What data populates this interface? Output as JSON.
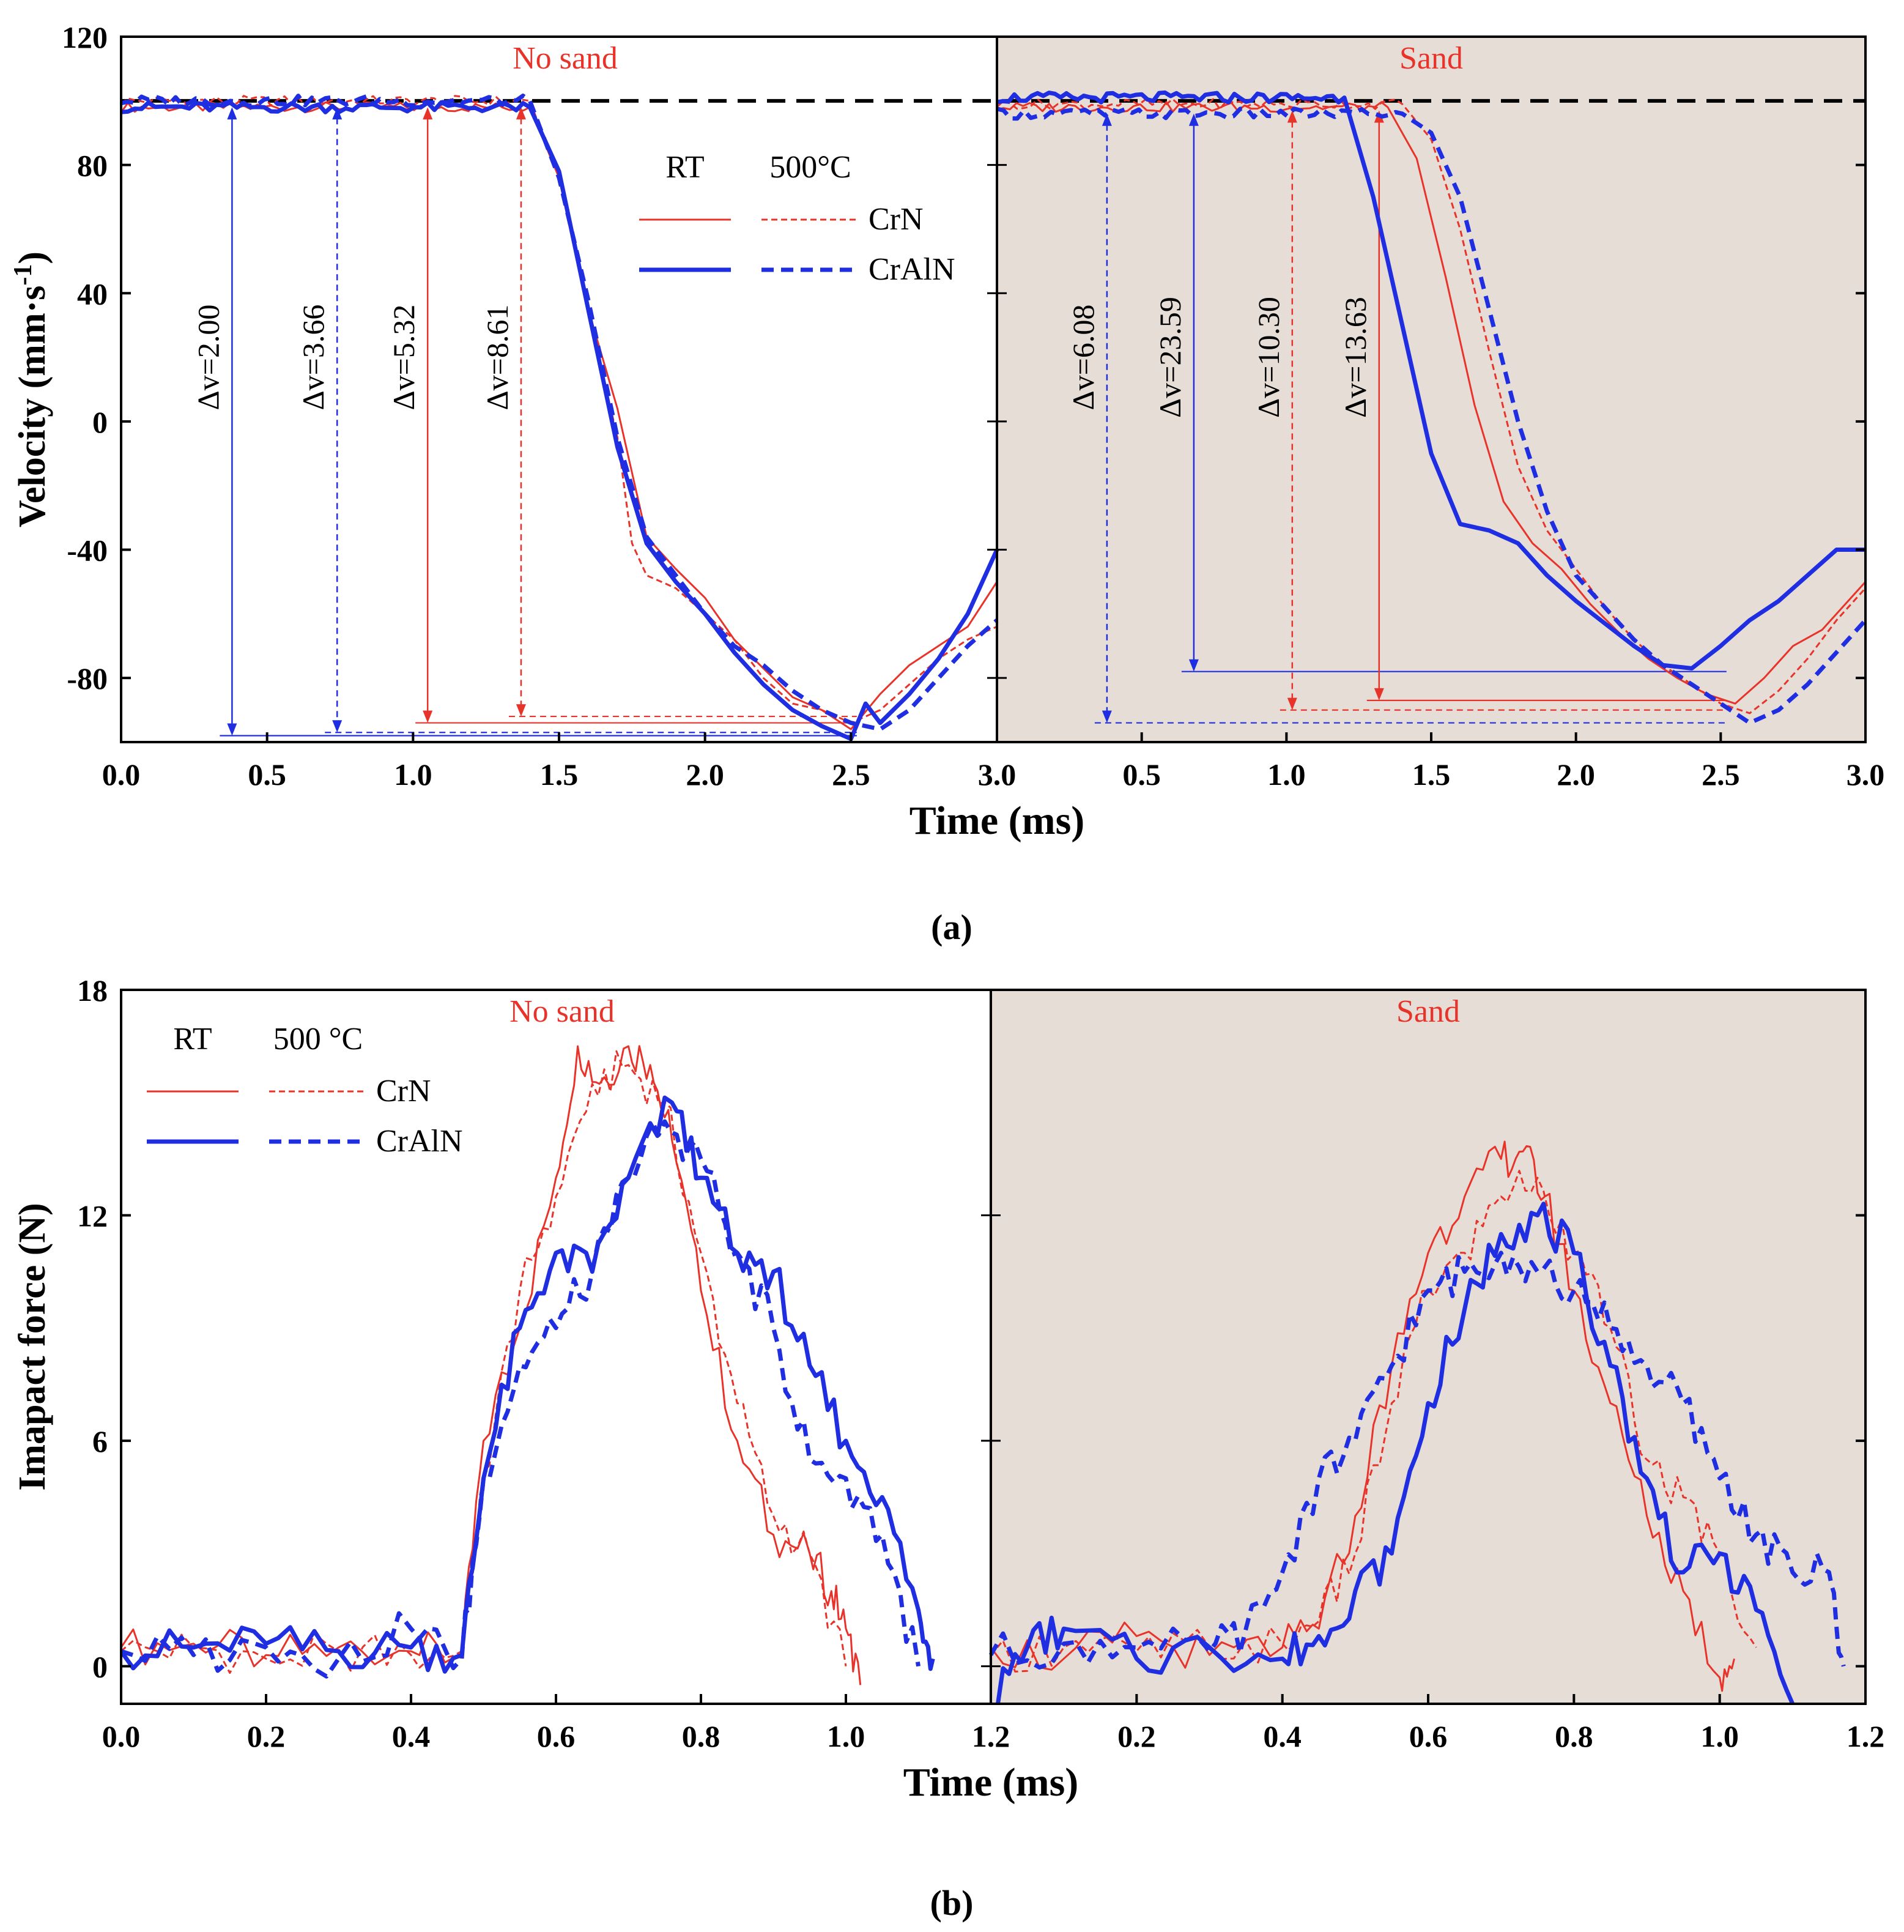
{
  "figure": {
    "panel_labels": [
      "(a)",
      "(b)"
    ]
  },
  "colors": {
    "red": "#e8332a",
    "blue": "#1f2ee0",
    "black": "#000000",
    "sand_bg": "#e6ddd6"
  },
  "chart_data": [
    {
      "type": "line",
      "panel": "(a)",
      "ylabel": "Velocity (mm·s-1)",
      "xlabel": "Time (ms)",
      "ylim": [
        -100,
        120
      ],
      "yticks": [
        "120",
        "80",
        "40",
        "0",
        "-40",
        "-80"
      ],
      "xticks_left": [
        "0.0",
        "0.5",
        "1.0",
        "1.5",
        "2.0",
        "2.5",
        "3.0"
      ],
      "xticks_right": [
        "3.0",
        "0.5",
        "1.0",
        "1.5",
        "2.0",
        "2.5",
        "3.0"
      ],
      "subpanels": [
        {
          "title": "No sand",
          "xlim": [
            0,
            3
          ],
          "shaded": false
        },
        {
          "title": "Sand",
          "xlim": [
            0,
            3
          ],
          "shaded": true
        }
      ],
      "legend": {
        "col1": "RT",
        "col2": "500°C",
        "rows": [
          "CrN",
          "CrAlN"
        ],
        "placement": "top-right of left subpanel"
      },
      "reference_line": 100,
      "series": [
        {
          "name": "CrN",
          "condition": "RT",
          "color": "red",
          "style": "solid",
          "no_sand": {
            "t_drop": 1.4,
            "plateau": 98,
            "x": [
              1.4,
              1.5,
              1.6,
              1.7,
              1.8,
              1.9,
              2.0,
              2.1,
              2.2,
              2.3,
              2.4,
              2.5,
              2.6,
              2.7,
              2.8,
              2.9,
              3.0
            ],
            "y": [
              98,
              76,
              35,
              4,
              -36,
              -46,
              -55,
              -68,
              -77,
              -86,
              -90,
              -96,
              -85,
              -76,
              -70,
              -64,
              -50
            ]
          },
          "sand": {
            "t_drop": 1.35,
            "plateau": 98,
            "x": [
              1.35,
              1.45,
              1.55,
              1.65,
              1.75,
              1.85,
              1.95,
              2.05,
              2.15,
              2.25,
              2.35,
              2.45,
              2.55,
              2.65,
              2.75,
              2.85,
              2.95,
              3.0
            ],
            "y": [
              98,
              82,
              45,
              5,
              -25,
              -38,
              -46,
              -57,
              -66,
              -74,
              -80,
              -85,
              -88,
              -80,
              -70,
              -65,
              -55,
              -50
            ]
          }
        },
        {
          "name": "CrN",
          "condition": "500°C",
          "color": "red",
          "style": "dashed",
          "no_sand": {
            "t_drop": 1.4,
            "plateau": 100,
            "x": [
              1.4,
              1.5,
              1.6,
              1.7,
              1.75,
              1.8,
              1.9,
              2.0,
              2.1,
              2.2,
              2.3,
              2.4,
              2.5,
              2.6,
              2.7,
              2.8,
              2.9,
              3.0
            ],
            "y": [
              100,
              76,
              34,
              -5,
              -38,
              -48,
              -52,
              -60,
              -68,
              -80,
              -88,
              -90,
              -94,
              -90,
              -82,
              -74,
              -68,
              -64
            ]
          },
          "sand": {
            "t_drop": 1.4,
            "plateau": 99,
            "x": [
              1.4,
              1.5,
              1.6,
              1.7,
              1.8,
              1.9,
              2.0,
              2.1,
              2.2,
              2.3,
              2.4,
              2.5,
              2.6,
              2.7,
              2.8,
              2.9,
              3.0
            ],
            "y": [
              99,
              88,
              60,
              22,
              -14,
              -34,
              -46,
              -58,
              -68,
              -76,
              -82,
              -88,
              -91,
              -84,
              -74,
              -62,
              -52
            ]
          }
        },
        {
          "name": "CrAlN",
          "condition": "RT",
          "color": "blue",
          "style": "solid",
          "no_sand": {
            "t_drop": 1.4,
            "plateau": 98,
            "x": [
              1.4,
              1.5,
              1.6,
              1.7,
              1.8,
              1.9,
              2.0,
              2.1,
              2.2,
              2.3,
              2.4,
              2.5,
              2.55,
              2.6,
              2.7,
              2.8,
              2.9,
              3.0
            ],
            "y": [
              98,
              78,
              35,
              -8,
              -38,
              -50,
              -60,
              -72,
              -82,
              -90,
              -95,
              -99,
              -88,
              -94,
              -85,
              -74,
              -60,
              -40
            ]
          },
          "sand": {
            "t_drop": 1.2,
            "plateau": 101,
            "x": [
              1.2,
              1.3,
              1.4,
              1.5,
              1.6,
              1.7,
              1.8,
              1.9,
              2.0,
              2.1,
              2.2,
              2.3,
              2.4,
              2.5,
              2.6,
              2.7,
              2.8,
              2.9,
              3.0
            ],
            "y": [
              101,
              70,
              30,
              -10,
              -32,
              -34,
              -38,
              -48,
              -56,
              -63,
              -70,
              -76,
              -77,
              -70,
              -62,
              -56,
              -48,
              -40,
              -40
            ]
          }
        },
        {
          "name": "CrAlN",
          "condition": "500°C",
          "color": "blue",
          "style": "dashed",
          "no_sand": {
            "t_drop": 1.4,
            "plateau": 100,
            "x": [
              1.4,
              1.5,
              1.6,
              1.7,
              1.8,
              1.9,
              2.0,
              2.1,
              2.2,
              2.3,
              2.4,
              2.5,
              2.6,
              2.7,
              2.8,
              2.9,
              3.0
            ],
            "y": [
              100,
              76,
              38,
              -5,
              -36,
              -48,
              -60,
              -70,
              -76,
              -84,
              -90,
              -94,
              -96,
              -90,
              -80,
              -70,
              -62
            ]
          },
          "sand": {
            "t_drop": 1.4,
            "plateau": 96,
            "x": [
              1.4,
              1.5,
              1.6,
              1.7,
              1.8,
              1.9,
              2.0,
              2.1,
              2.2,
              2.3,
              2.4,
              2.5,
              2.6,
              2.7,
              2.8,
              2.9,
              3.0
            ],
            "y": [
              96,
              90,
              70,
              35,
              0,
              -28,
              -48,
              -58,
              -68,
              -76,
              -82,
              -88,
              -94,
              -90,
              -82,
              -72,
              -62
            ]
          }
        }
      ],
      "annotations_no_sand": [
        {
          "text": "Δv=2.00",
          "x": 0.38,
          "y_top": 98,
          "y_bottom": -98,
          "color": "blue",
          "style": "solid"
        },
        {
          "text": "Δv=3.66",
          "x": 0.74,
          "y_top": 98,
          "y_bottom": -97,
          "color": "blue",
          "style": "dashed"
        },
        {
          "text": "Δv=5.32",
          "x": 1.05,
          "y_top": 98,
          "y_bottom": -94,
          "color": "red",
          "style": "solid"
        },
        {
          "text": "Δv=8.61",
          "x": 1.37,
          "y_top": 98,
          "y_bottom": -92,
          "color": "red",
          "style": "dashed"
        }
      ],
      "annotations_sand": [
        {
          "text": "Δv=6.08",
          "x": 0.38,
          "y_top": 96,
          "y_bottom": -94,
          "color": "blue",
          "style": "dashed"
        },
        {
          "text": "Δv=23.59",
          "x": 0.68,
          "y_top": 96,
          "y_bottom": -78,
          "color": "blue",
          "style": "solid"
        },
        {
          "text": "Δv=10.30",
          "x": 1.02,
          "y_top": 97,
          "y_bottom": -90,
          "color": "red",
          "style": "dashed"
        },
        {
          "text": "Δv=13.63",
          "x": 1.32,
          "y_top": 97,
          "y_bottom": -87,
          "color": "red",
          "style": "solid"
        }
      ]
    },
    {
      "type": "line",
      "panel": "(b)",
      "ylabel": "Imapact force (N)",
      "xlabel": "Time (ms)",
      "ylim": [
        -1,
        18
      ],
      "yticks": [
        "18",
        "12",
        "6",
        "0"
      ],
      "xticks_left": [
        "0.0",
        "0.2",
        "0.4",
        "0.6",
        "0.8",
        "1.0",
        "1.2"
      ],
      "xticks_right": [
        "1.2",
        "0.2",
        "0.4",
        "0.6",
        "0.8",
        "1.0",
        "1.2"
      ],
      "subpanels": [
        {
          "title": "No sand",
          "xlim": [
            0,
            1.2
          ],
          "shaded": false
        },
        {
          "title": "Sand",
          "xlim": [
            0,
            1.2
          ],
          "shaded": true
        }
      ],
      "legend": {
        "col1": "RT",
        "col2": "500 °C",
        "rows": [
          "CrN",
          "CrAlN"
        ],
        "placement": "top-left"
      },
      "series": [
        {
          "name": "CrN",
          "condition": "RT",
          "color": "red",
          "style": "solid",
          "no_sand": {
            "x": [
              0.0,
              0.1,
              0.2,
              0.3,
              0.4,
              0.47,
              0.5,
              0.55,
              0.6,
              0.63,
              0.66,
              0.7,
              0.73,
              0.76,
              0.8,
              0.85,
              0.9,
              0.95,
              0.98,
              1.0,
              1.02
            ],
            "y": [
              0.5,
              0.6,
              0.3,
              0.5,
              0.4,
              0.3,
              6,
              9,
              13,
              16.5,
              15.5,
              16.5,
              16,
              14,
              10,
              6,
              3.5,
              3,
              2,
              1,
              -0.5
            ]
          },
          "sand": {
            "x": [
              0.0,
              0.1,
              0.2,
              0.3,
              0.4,
              0.45,
              0.5,
              0.55,
              0.6,
              0.65,
              0.7,
              0.73,
              0.76,
              0.8,
              0.85,
              0.9,
              0.95,
              1.0,
              1.02
            ],
            "y": [
              0.5,
              0.2,
              0.8,
              0.3,
              0.5,
              1,
              4,
              8,
              11,
              12.5,
              13.5,
              13.7,
              12.5,
              10,
              7,
              4,
              2,
              -0.3,
              0.2
            ]
          }
        },
        {
          "name": "CrN",
          "condition": "500 °C",
          "color": "red",
          "style": "dashed",
          "no_sand": {
            "x": [
              0.0,
              0.1,
              0.2,
              0.3,
              0.4,
              0.47,
              0.5,
              0.55,
              0.6,
              0.65,
              0.7,
              0.75,
              0.8,
              0.85,
              0.9,
              0.95,
              1.0
            ],
            "y": [
              0.4,
              0.5,
              0.2,
              0.4,
              0.3,
              0.4,
              5,
              10,
              12.5,
              15.5,
              16,
              15,
              11,
              7,
              4,
              3,
              0
            ]
          },
          "sand": {
            "x": [
              0.0,
              0.1,
              0.2,
              0.3,
              0.4,
              0.45,
              0.5,
              0.55,
              0.6,
              0.65,
              0.7,
              0.75,
              0.8,
              0.85,
              0.9,
              0.95,
              1.0,
              1.05
            ],
            "y": [
              0.3,
              0.5,
              0.4,
              0.5,
              0.6,
              1.2,
              3,
              7,
              10,
              11,
              12.5,
              13,
              11,
              9,
              5.5,
              4.5,
              3,
              0.5
            ]
          }
        },
        {
          "name": "CrAlN",
          "condition": "RT",
          "color": "blue",
          "style": "solid",
          "no_sand": {
            "x": [
              0.0,
              0.1,
              0.2,
              0.3,
              0.4,
              0.47,
              0.5,
              0.55,
              0.6,
              0.65,
              0.7,
              0.76,
              0.8,
              0.85,
              0.9,
              0.95,
              1.0,
              1.05,
              1.1,
              1.12
            ],
            "y": [
              0.4,
              0.5,
              0.6,
              0.4,
              0.5,
              0.3,
              5,
              9,
              11,
              10.5,
              13,
              15,
              13,
              11,
              10.5,
              8,
              6,
              4.5,
              1.5,
              0.2
            ]
          },
          "sand": {
            "x": [
              0.0,
              0.05,
              0.1,
              0.2,
              0.3,
              0.4,
              0.45,
              0.5,
              0.55,
              0.6,
              0.65,
              0.7,
              0.75,
              0.8,
              0.85,
              0.9,
              0.95,
              1.0,
              1.05,
              1.1
            ],
            "y": [
              -1,
              0.5,
              1,
              0.2,
              0.5,
              0.2,
              0.8,
              2,
              3,
              7,
              9.5,
              11.5,
              12,
              11,
              8,
              5,
              2.5,
              3,
              1.5,
              -1
            ]
          }
        },
        {
          "name": "CrAlN",
          "condition": "500 °C",
          "color": "blue",
          "style": "dashed",
          "no_sand": {
            "x": [
              0.0,
              0.1,
              0.2,
              0.3,
              0.4,
              0.47,
              0.5,
              0.55,
              0.6,
              0.65,
              0.7,
              0.75,
              0.8,
              0.85,
              0.9,
              0.95,
              1.0,
              1.05,
              1.1
            ],
            "y": [
              0.4,
              0.3,
              0.5,
              0.2,
              1,
              0.2,
              5,
              8,
              9,
              10.5,
              13,
              14.5,
              13.5,
              11,
              9,
              5.5,
              5,
              3.5,
              0
            ]
          },
          "sand": {
            "x": [
              0.0,
              0.1,
              0.2,
              0.3,
              0.35,
              0.4,
              0.45,
              0.5,
              0.55,
              0.6,
              0.65,
              0.7,
              0.75,
              0.8,
              0.85,
              0.9,
              0.95,
              1.0,
              1.05,
              1.1,
              1.15,
              1.17
            ],
            "y": [
              0.3,
              0.6,
              0.5,
              0.4,
              1,
              2.5,
              5,
              6,
              8,
              10,
              10.5,
              11,
              10.5,
              10,
              9,
              8,
              7,
              5,
              3.5,
              2.5,
              2.5,
              0
            ]
          }
        }
      ]
    }
  ]
}
